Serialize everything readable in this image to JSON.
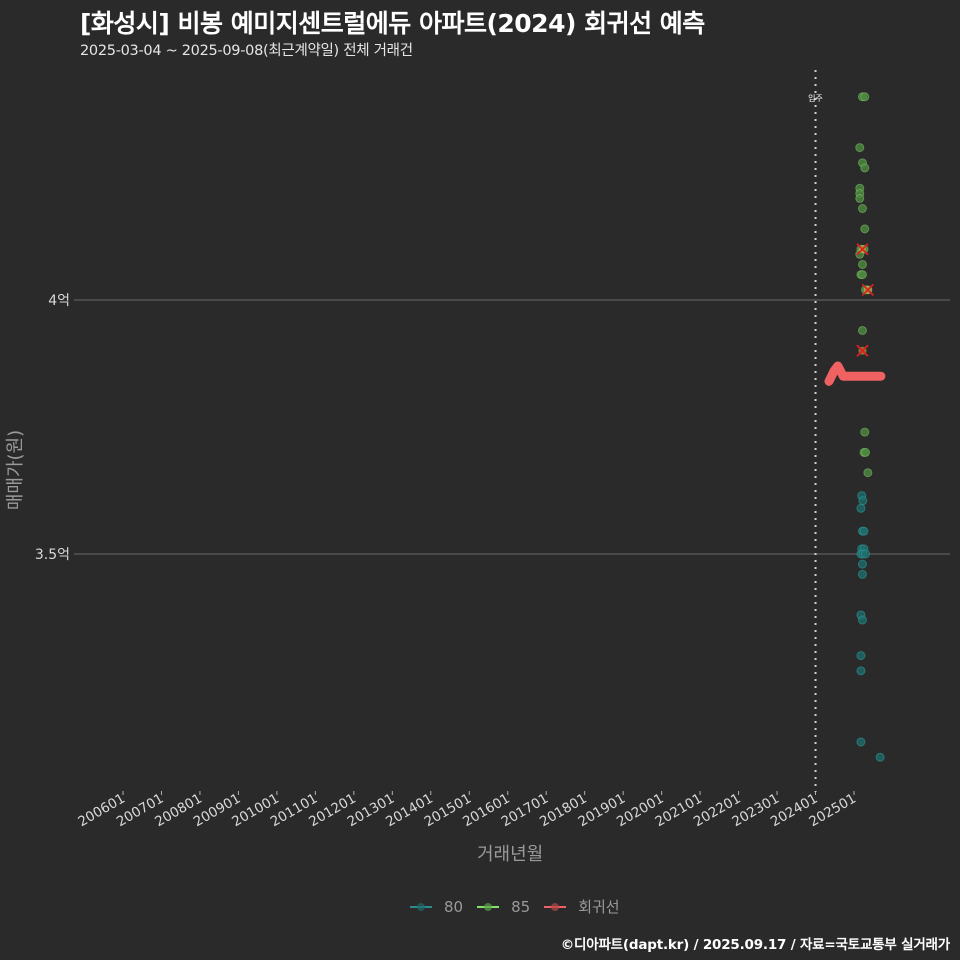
{
  "header": {
    "title": "[화성시] 비봉 예미지센트럴에듀 아파트(2024) 회귀선 예측",
    "subtitle": "2025-03-04 ~ 2025-09-08(최근계약일) 전체 거래건"
  },
  "axes": {
    "xlabel": "거래년월",
    "ylabel": "매매가(원)"
  },
  "legend": {
    "items": [
      {
        "label": "80",
        "color": "#2e8b8b"
      },
      {
        "label": "85",
        "color": "#86e06a"
      },
      {
        "label": "회귀선",
        "color": "#f06060"
      }
    ]
  },
  "annotation": {
    "label": "입주",
    "x": "202401"
  },
  "caption": "©디아파트(dapt.kr) / 2025.09.17 / 자료=국토교통부 실거래가",
  "chart_data": {
    "type": "scatter",
    "title": "[화성시] 비봉 예미지센트럴에듀 아파트(2024) 회귀선 예측",
    "subtitle": "2025-03-04 ~ 2025-09-08(최근계약일) 전체 거래건",
    "xlabel": "거래년월",
    "ylabel": "매매가(원)",
    "x_ticks": [
      "200601",
      "200701",
      "200801",
      "200901",
      "201001",
      "201101",
      "201201",
      "201301",
      "201401",
      "201501",
      "201601",
      "201701",
      "201801",
      "201901",
      "202001",
      "202101",
      "202201",
      "202301",
      "202401",
      "202501"
    ],
    "y_ticks": [
      {
        "value": 3.5,
        "label": "3.5억"
      },
      {
        "value": 4.0,
        "label": "4억"
      }
    ],
    "ylim": [
      3.04,
      4.46
    ],
    "grid": "horizontal major only",
    "legend_position": "bottom",
    "vline": {
      "x": 2024.0,
      "label": "입주",
      "style": "dotted"
    },
    "series": [
      {
        "name": "80",
        "color": "#2e8b8b",
        "points": [
          {
            "x": 2025.2,
            "y": 3.615
          },
          {
            "x": 2025.23,
            "y": 3.605
          },
          {
            "x": 2025.18,
            "y": 3.59
          },
          {
            "x": 2025.22,
            "y": 3.545
          },
          {
            "x": 2025.26,
            "y": 3.545
          },
          {
            "x": 2025.2,
            "y": 3.51
          },
          {
            "x": 2025.26,
            "y": 3.51
          },
          {
            "x": 2025.18,
            "y": 3.5
          },
          {
            "x": 2025.23,
            "y": 3.5
          },
          {
            "x": 2025.3,
            "y": 3.5
          },
          {
            "x": 2025.22,
            "y": 3.48
          },
          {
            "x": 2025.22,
            "y": 3.46
          },
          {
            "x": 2025.18,
            "y": 3.38
          },
          {
            "x": 2025.22,
            "y": 3.37
          },
          {
            "x": 2025.18,
            "y": 3.3
          },
          {
            "x": 2025.18,
            "y": 3.27
          },
          {
            "x": 2025.18,
            "y": 3.13
          },
          {
            "x": 2025.68,
            "y": 3.1
          }
        ]
      },
      {
        "name": "85",
        "color": "#86e06a",
        "points": [
          {
            "x": 2025.22,
            "y": 4.4
          },
          {
            "x": 2025.28,
            "y": 4.4
          },
          {
            "x": 2025.15,
            "y": 4.3
          },
          {
            "x": 2025.22,
            "y": 4.27
          },
          {
            "x": 2025.28,
            "y": 4.26
          },
          {
            "x": 2025.15,
            "y": 4.22
          },
          {
            "x": 2025.15,
            "y": 4.21
          },
          {
            "x": 2025.15,
            "y": 4.2
          },
          {
            "x": 2025.22,
            "y": 4.18
          },
          {
            "x": 2025.28,
            "y": 4.14
          },
          {
            "x": 2025.18,
            "y": 4.1
          },
          {
            "x": 2025.26,
            "y": 4.1
          },
          {
            "x": 2025.15,
            "y": 4.09
          },
          {
            "x": 2025.22,
            "y": 4.07
          },
          {
            "x": 2025.18,
            "y": 4.05
          },
          {
            "x": 2025.22,
            "y": 4.05
          },
          {
            "x": 2025.3,
            "y": 4.02
          },
          {
            "x": 2025.36,
            "y": 4.02
          },
          {
            "x": 2025.22,
            "y": 3.94
          },
          {
            "x": 2025.28,
            "y": 3.74
          },
          {
            "x": 2025.26,
            "y": 3.7
          },
          {
            "x": 2025.3,
            "y": 3.7
          },
          {
            "x": 2025.36,
            "y": 3.66
          }
        ]
      },
      {
        "name": "회귀선",
        "color": "#f06060",
        "line": [
          {
            "x": 2024.35,
            "y": 3.84
          },
          {
            "x": 2024.48,
            "y": 3.86
          },
          {
            "x": 2024.58,
            "y": 3.87
          },
          {
            "x": 2024.72,
            "y": 3.85
          },
          {
            "x": 2024.85,
            "y": 3.85
          },
          {
            "x": 2025.1,
            "y": 3.85
          },
          {
            "x": 2025.4,
            "y": 3.85
          },
          {
            "x": 2025.7,
            "y": 3.85
          }
        ],
        "predictions": [
          {
            "x": 2025.22,
            "y": 4.1
          },
          {
            "x": 2025.36,
            "y": 4.02
          },
          {
            "x": 2025.22,
            "y": 3.9
          }
        ]
      }
    ]
  }
}
